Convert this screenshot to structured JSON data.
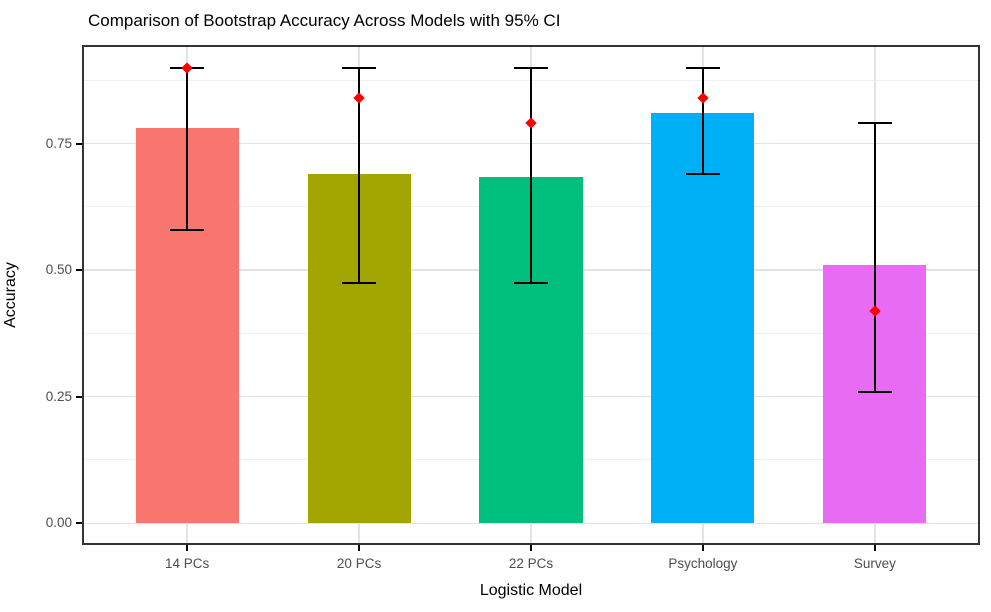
{
  "chart_data": {
    "type": "bar",
    "title": "Comparison of Bootstrap Accuracy Across Models with 95% CI",
    "xlabel": "Logistic Model",
    "ylabel": "Accuracy",
    "categories": [
      "14 PCs",
      "20 PCs",
      "22 PCs",
      "Psychology",
      "Survey"
    ],
    "values": [
      0.78,
      0.69,
      0.685,
      0.81,
      0.51
    ],
    "bar_colors": [
      "#F8766D",
      "#A3A500",
      "#00BF7D",
      "#00B0F6",
      "#E76BF3"
    ],
    "error_low": [
      0.58,
      0.475,
      0.475,
      0.69,
      0.26
    ],
    "error_high": [
      0.9,
      0.9,
      0.9,
      0.9,
      0.79
    ],
    "points": [
      0.9,
      0.84,
      0.79,
      0.84,
      0.42
    ],
    "point_color": "#FF0000",
    "errorbar_color": "#000000",
    "y_ticks": [
      "0.00",
      "0.25",
      "0.50",
      "0.75"
    ],
    "y_tick_values": [
      0,
      0.25,
      0.5,
      0.75
    ],
    "y_minor_values": [
      0.125,
      0.375,
      0.625,
      0.875
    ],
    "ylim": [
      -0.039,
      0.941
    ],
    "grid": "on",
    "legend": "none",
    "colors": {
      "background": "#FFFFFF",
      "panel_border": "#333333",
      "grid_major": "#E3E3E3",
      "grid_minor": "#EFEFEF",
      "axis_text": "#4D4D4D",
      "axis_title": "#000000",
      "tick": "#000000"
    }
  }
}
